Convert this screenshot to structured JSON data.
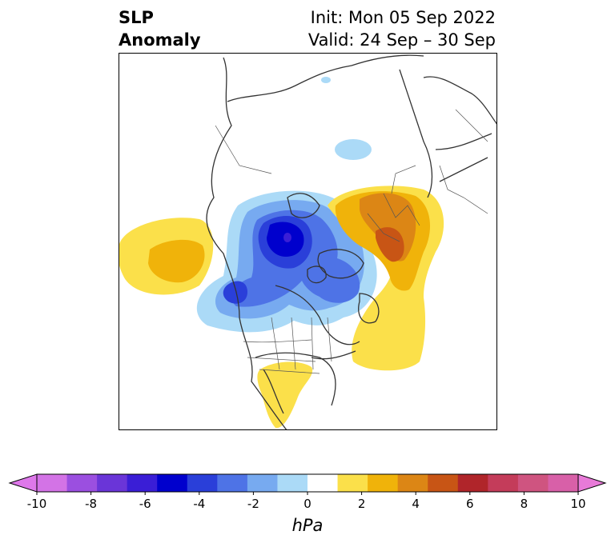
{
  "header": {
    "left_line1": "SLP",
    "left_line2": "Anomaly",
    "right_line1": "Init: Mon 05 Sep 2022",
    "right_line2": "Valid: 24 Sep – 30 Sep"
  },
  "colorbar": {
    "unit": "hPa",
    "tick_labels": [
      "-10",
      "-8",
      "-6",
      "-4",
      "-2",
      "0",
      "2",
      "4",
      "6",
      "8",
      "10"
    ],
    "colors": [
      "#d373e6",
      "#9b4fe0",
      "#6a35d8",
      "#3a1ed6",
      "#0000cd",
      "#2a3fd9",
      "#4e73e6",
      "#77aaf0",
      "#abdaf7",
      "#ffffff",
      "#fbe04a",
      "#f0b30a",
      "#dc8615",
      "#c85515",
      "#b0252a",
      "#c43c5a",
      "#cf5480",
      "#d860a8"
    ],
    "min_extend_color": "#de78ea",
    "max_extend_color": "#e87ad8"
  },
  "map": {
    "region": "North America / Arctic polar projection",
    "features": [
      "coastlines",
      "country borders",
      "state/province borders"
    ]
  }
}
